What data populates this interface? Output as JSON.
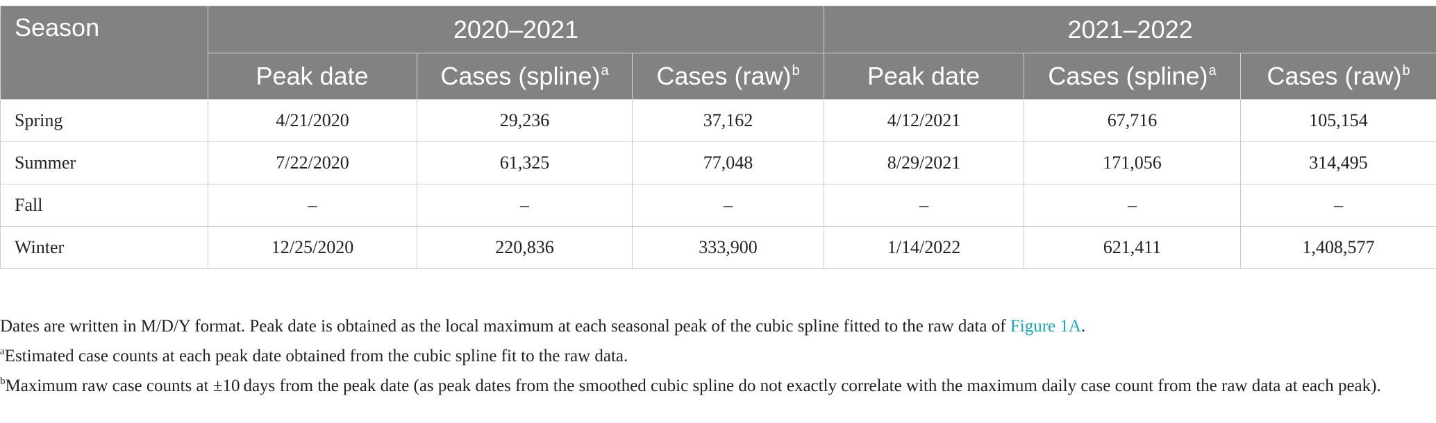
{
  "table": {
    "season_header": "Season",
    "groups": [
      "2020–2021",
      "2021–2022"
    ],
    "subheaders": [
      {
        "label": "Peak date",
        "sup": ""
      },
      {
        "label": "Cases (spline)",
        "sup": "a"
      },
      {
        "label": "Cases (raw)",
        "sup": "b"
      },
      {
        "label": "Peak date",
        "sup": ""
      },
      {
        "label": "Cases (spline)",
        "sup": "a"
      },
      {
        "label": "Cases (raw)",
        "sup": "b"
      }
    ],
    "rows": [
      {
        "season": "Spring",
        "cells": [
          "4/21/2020",
          "29,236",
          "37,162",
          "4/12/2021",
          "67,716",
          "105,154"
        ]
      },
      {
        "season": "Summer",
        "cells": [
          "7/22/2020",
          "61,325",
          "77,048",
          "8/29/2021",
          "171,056",
          "314,495"
        ]
      },
      {
        "season": "Fall",
        "cells": [
          "–",
          "–",
          "–",
          "–",
          "–",
          "–"
        ]
      },
      {
        "season": "Winter",
        "cells": [
          "12/25/2020",
          "220,836",
          "333,900",
          "1/14/2022",
          "621,411",
          "1,408,577"
        ]
      }
    ]
  },
  "notes": {
    "main_text": "Dates are written in M/D/Y format. Peak date is obtained as the local maximum at each seasonal peak of the cubic spline fitted to the raw data of ",
    "main_link": "Figure 1A",
    "main_end": ".",
    "note_a_mark": "a",
    "note_a_text": "Estimated case counts at each peak date obtained from the cubic spline fit to the raw data.",
    "note_b_mark": "b",
    "note_b_text": "Maximum raw case counts at ±10 days from the peak date (as peak dates from the smoothed cubic spline do not exactly correlate with the maximum daily case count from the raw data at each peak)."
  }
}
